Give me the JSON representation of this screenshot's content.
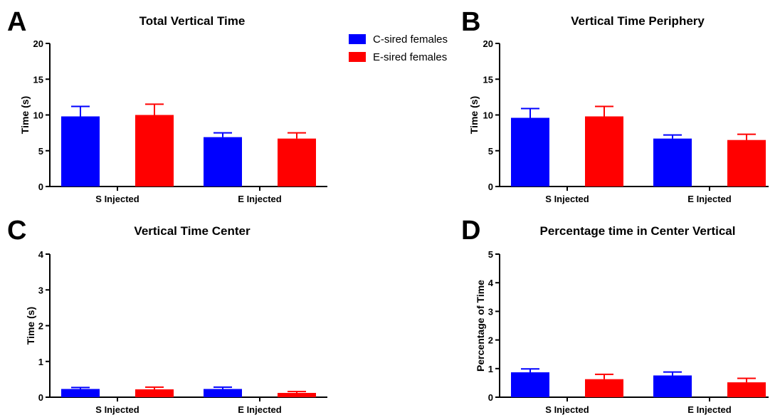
{
  "panels": [
    {
      "letter": "A"
    },
    {
      "letter": "B"
    },
    {
      "letter": "C"
    },
    {
      "letter": "D"
    }
  ],
  "legend": [
    {
      "name": "C-sired females",
      "color": "#0000FF"
    },
    {
      "name": "E-sired females",
      "color": "#FF0000"
    }
  ],
  "chart_data": [
    {
      "type": "bar",
      "title": "Total Vertical Time",
      "ylabel": "Time (s)",
      "xlabel": "",
      "categories": [
        "S Injected",
        "E Injected"
      ],
      "ylim": [
        0,
        20
      ],
      "yticks": [
        0,
        5,
        10,
        15,
        20
      ],
      "series": [
        {
          "name": "C-sired females",
          "color": "#0000FF",
          "values": [
            9.8,
            6.9
          ],
          "errors": [
            1.4,
            0.6
          ]
        },
        {
          "name": "E-sired females",
          "color": "#FF0000",
          "values": [
            10.0,
            6.7
          ],
          "errors": [
            1.5,
            0.8
          ]
        }
      ],
      "legend_placement": "top-right",
      "grid": false
    },
    {
      "type": "bar",
      "title": "Vertical Time Periphery",
      "ylabel": "Time (s)",
      "xlabel": "",
      "categories": [
        "S Injected",
        "E Injected"
      ],
      "ylim": [
        0,
        20
      ],
      "yticks": [
        0,
        5,
        10,
        15,
        20
      ],
      "series": [
        {
          "name": "C-sired females",
          "color": "#0000FF",
          "values": [
            9.6,
            6.7
          ],
          "errors": [
            1.3,
            0.5
          ]
        },
        {
          "name": "E-sired females",
          "color": "#FF0000",
          "values": [
            9.8,
            6.5
          ],
          "errors": [
            1.4,
            0.8
          ]
        }
      ],
      "grid": false
    },
    {
      "type": "bar",
      "title": "Vertical Time Center",
      "ylabel": "Time (s)",
      "xlabel": "",
      "categories": [
        "S Injected",
        "E Injected"
      ],
      "ylim": [
        0,
        4
      ],
      "yticks": [
        0,
        1,
        2,
        3,
        4
      ],
      "series": [
        {
          "name": "C-sired females",
          "color": "#0000FF",
          "values": [
            0.23,
            0.23
          ],
          "errors": [
            0.04,
            0.05
          ]
        },
        {
          "name": "E-sired females",
          "color": "#FF0000",
          "values": [
            0.22,
            0.12
          ],
          "errors": [
            0.06,
            0.04
          ]
        }
      ],
      "grid": false
    },
    {
      "type": "bar",
      "title": "Percentage time in Center Vertical",
      "ylabel": "Percentage of Time",
      "xlabel": "",
      "categories": [
        "S Injected",
        "E Injected"
      ],
      "ylim": [
        0,
        5
      ],
      "yticks": [
        0,
        1,
        2,
        3,
        4,
        5
      ],
      "series": [
        {
          "name": "C-sired females",
          "color": "#0000FF",
          "values": [
            0.87,
            0.76
          ],
          "errors": [
            0.12,
            0.12
          ]
        },
        {
          "name": "E-sired females",
          "color": "#FF0000",
          "values": [
            0.63,
            0.52
          ],
          "errors": [
            0.17,
            0.14
          ]
        }
      ],
      "grid": false
    }
  ]
}
